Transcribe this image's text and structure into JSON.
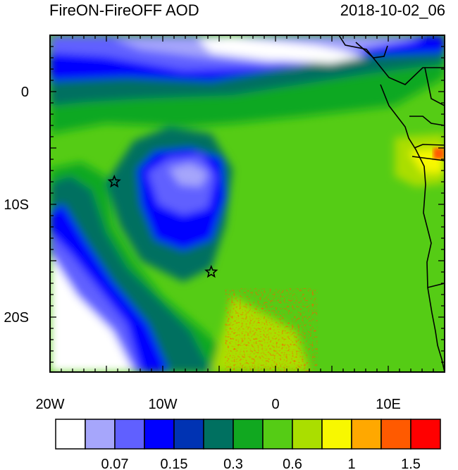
{
  "title": {
    "left": "FireON-FireOFF AOD",
    "right": "2018-10-02_06"
  },
  "map": {
    "x_ticks": [
      {
        "lon": -20,
        "label": "20W"
      },
      {
        "lon": -10,
        "label": "10W"
      },
      {
        "lon": 0,
        "label": "0"
      },
      {
        "lon": 10,
        "label": "10E"
      }
    ],
    "y_ticks": [
      {
        "lat": 0,
        "label": "0"
      },
      {
        "lat": -10,
        "label": "10S"
      },
      {
        "lat": -20,
        "label": "20S"
      }
    ],
    "markers": [
      {
        "symbol": "star",
        "lon": -14.3,
        "lat": -8.0
      },
      {
        "symbol": "star",
        "lon": -5.7,
        "lat": -16.0
      }
    ]
  },
  "colorbar": {
    "colors": [
      "#ffffff",
      "#a6a6fb",
      "#6060ff",
      "#0000ff",
      "#0033b3",
      "#007060",
      "#11a820",
      "#55cc15",
      "#aade00",
      "#f8f800",
      "#ffa800",
      "#ff5a00",
      "#ff0000"
    ],
    "labels": [
      {
        "after_box": 2,
        "text": "0.07"
      },
      {
        "after_box": 4,
        "text": "0.15"
      },
      {
        "after_box": 6,
        "text": "0.3"
      },
      {
        "after_box": 8,
        "text": "0.6"
      },
      {
        "after_box": 10,
        "text": "1"
      },
      {
        "after_box": 12,
        "text": "1.5"
      }
    ]
  }
}
